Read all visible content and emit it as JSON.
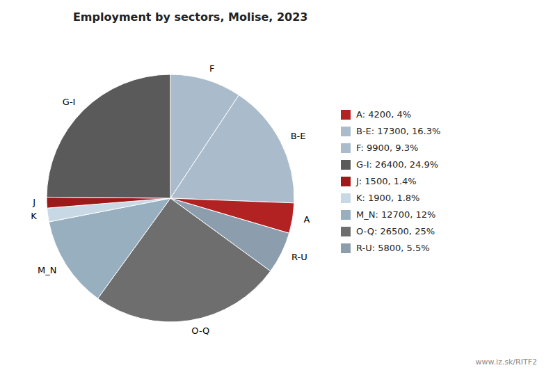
{
  "chart_data": {
    "type": "pie",
    "title": "Employment by sectors, Molise, 2023",
    "categories": [
      "F",
      "B-E",
      "A",
      "R-U",
      "O-Q",
      "M_N",
      "K",
      "J",
      "G-I"
    ],
    "values": [
      9900,
      17300,
      4200,
      5800,
      26500,
      12700,
      1900,
      1500,
      26400
    ],
    "colors": [
      "#aabccc",
      "#aabccc",
      "#b22222",
      "#8c9eae",
      "#6e6e6e",
      "#98afc0",
      "#c8d8e4",
      "#9e1a1a",
      "#5a5a5a"
    ],
    "legend": "right",
    "legend_entries": [
      {
        "label": "A: 4200, 4%",
        "color": "#b22222"
      },
      {
        "label": "B-E: 17300, 16.3%",
        "color": "#aabccc"
      },
      {
        "label": "F: 9900, 9.3%",
        "color": "#aabccc"
      },
      {
        "label": "G-I: 26400, 24.9%",
        "color": "#5a5a5a"
      },
      {
        "label": "J: 1500, 1.4%",
        "color": "#9e1a1a"
      },
      {
        "label": "K: 1900, 1.8%",
        "color": "#c8d8e4"
      },
      {
        "label": "M_N: 12700, 12%",
        "color": "#98afc0"
      },
      {
        "label": "O-Q: 26500, 25%",
        "color": "#6e6e6e"
      },
      {
        "label": "R-U: 5800, 5.5%",
        "color": "#8c9eae"
      }
    ],
    "annotations": [
      "www.iz.sk/RITF2"
    ]
  }
}
